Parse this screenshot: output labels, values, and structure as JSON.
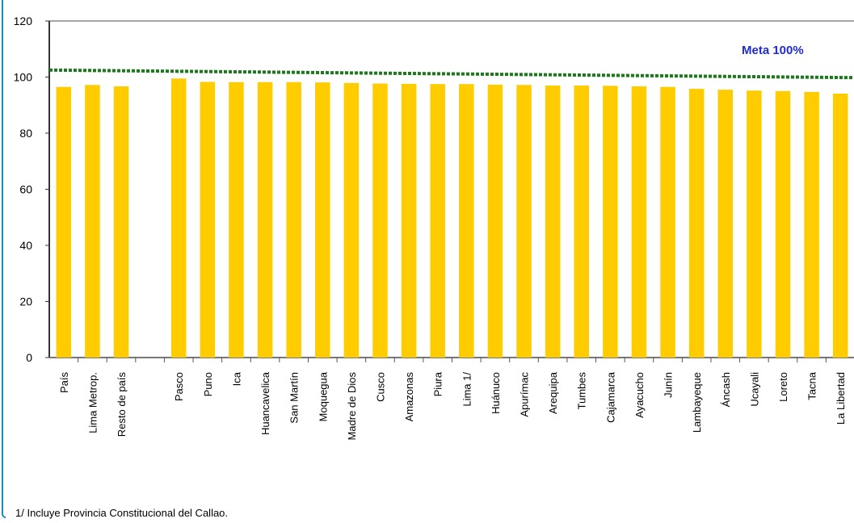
{
  "chart_data": {
    "type": "bar",
    "categories": [
      "País",
      "Lima Metrop.",
      "Resto de país",
      "",
      "Pasco",
      "Puno",
      "Ica",
      "Huancavelica",
      "San Martín",
      "Moquegua",
      "Madre de Dios",
      "Cusco",
      "Amazonas",
      "Piura",
      "Lima 1/",
      "Huánuco",
      "Apurímac",
      "Arequipa",
      "Tumbes",
      "Cajamarca",
      "Ayacucho",
      "Junín",
      "Lambayeque",
      "Áncash",
      "Ucayali",
      "Loreto",
      "Tacna",
      "La Libertad"
    ],
    "values": [
      96.5,
      97.2,
      96.7,
      null,
      99.5,
      98.3,
      98.2,
      98.2,
      98.2,
      98.1,
      97.9,
      97.7,
      97.6,
      97.5,
      97.5,
      97.3,
      97.2,
      97.0,
      97.0,
      96.9,
      96.7,
      96.5,
      95.8,
      95.5,
      95.2,
      95.0,
      94.7,
      94.1
    ],
    "ylim": [
      0,
      120
    ],
    "yticks": [
      0,
      20,
      40,
      60,
      80,
      100,
      120
    ],
    "meta_line": {
      "label": "Meta 100%",
      "start": 102.5,
      "end": 99.8
    },
    "colors": {
      "bar": "#ffcc00",
      "meta": "#1a7a1a",
      "axis": "#555555"
    }
  },
  "footnote": "1/ Incluye Provincia Constitucional del Callao."
}
